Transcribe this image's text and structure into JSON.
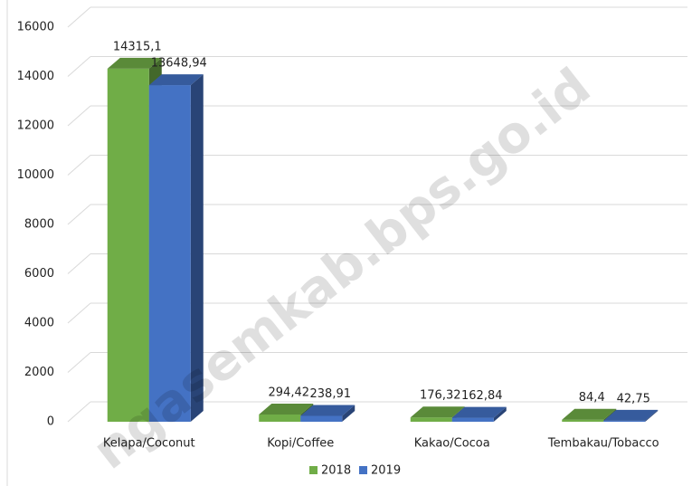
{
  "chart_data": {
    "type": "bar3d",
    "categories": [
      "Kelapa/Coconut",
      "Kopi/Coffee",
      "Kakao/Cocoa",
      "Tembakau/Tobacco"
    ],
    "series": [
      {
        "name": "2018",
        "color": "#70ad47",
        "values": [
          14315.1,
          294.42,
          176.32,
          84.4
        ],
        "value_labels": [
          "14315,1",
          "294,42",
          "176,32",
          "84,4"
        ]
      },
      {
        "name": "2019",
        "color": "#4472c4",
        "values": [
          13648.94,
          238.91,
          162.84,
          42.75
        ],
        "value_labels": [
          "13648,94",
          "238,91",
          "162,84",
          "42,75"
        ]
      }
    ],
    "ylim": [
      0,
      16000
    ],
    "yticks": [
      0,
      2000,
      4000,
      6000,
      8000,
      10000,
      12000,
      14000,
      16000
    ],
    "grid": true,
    "legend": "bottom",
    "watermark": "ngasemkab.bps.go.id"
  }
}
